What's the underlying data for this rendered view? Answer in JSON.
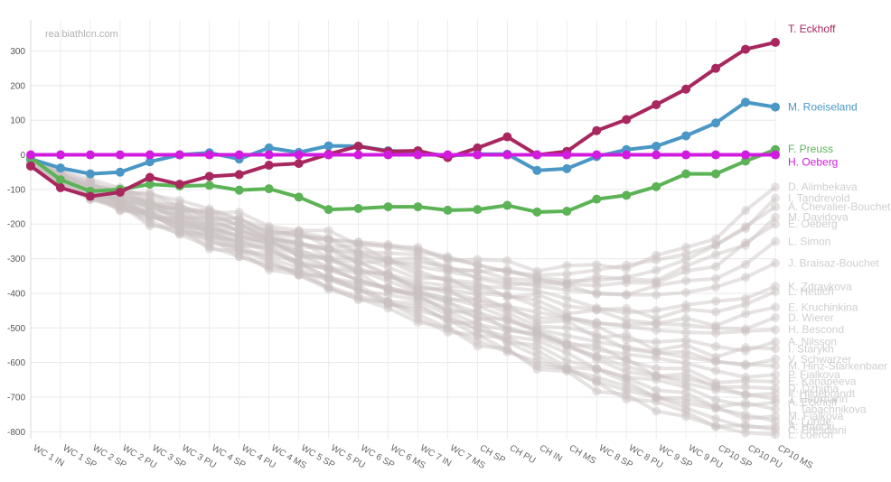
{
  "watermark": "realbiathlon.com",
  "chart_data": {
    "type": "line",
    "ylim": [
      -820,
      390
    ],
    "y_ticks": [
      300,
      200,
      100,
      0,
      -100,
      -200,
      -300,
      -400,
      -500,
      -600,
      -700,
      -800
    ],
    "grid": true,
    "x": [
      "WC 1 IN",
      "WC 1 SP",
      "WC 2 SP",
      "WC 2 PU",
      "WC 3 SP",
      "WC 3 PU",
      "WC 4 SP",
      "WC 4 PU",
      "WC 4 MS",
      "WC 5 SP",
      "WC 5 PU",
      "WC 6 SP",
      "WC 6 MS",
      "WC 7 IN",
      "WC 7 MS",
      "CH SP",
      "CH PU",
      "CH IN",
      "CH MS",
      "WC 8 SP",
      "WC 8 PU",
      "WC 9 SP",
      "WC 9 PU",
      "CP10 SP",
      "CP10 PU",
      "CP10 MS"
    ],
    "series": [
      {
        "name": "T. Eckhoff",
        "color": "#a8275f",
        "values": [
          -32,
          -95,
          -120,
          -108,
          -65,
          -85,
          -62,
          -57,
          -30,
          -25,
          2,
          25,
          10,
          12,
          -8,
          20,
          52,
          0,
          10,
          70,
          102,
          145,
          190,
          250,
          305,
          325
        ]
      },
      {
        "name": "M. Roeiseland",
        "color": "#4a97c6",
        "values": [
          -12,
          -38,
          -55,
          -50,
          -20,
          0,
          6,
          -12,
          20,
          7,
          26,
          25,
          12,
          8,
          -3,
          2,
          2,
          -45,
          -40,
          -5,
          15,
          25,
          55,
          92,
          152,
          138
        ]
      },
      {
        "name": "F. Preuss",
        "color": "#5cb356",
        "values": [
          -8,
          -72,
          -105,
          -100,
          -85,
          -90,
          -88,
          -102,
          -98,
          -122,
          -158,
          -155,
          -150,
          -150,
          -160,
          -158,
          -146,
          -165,
          -163,
          -128,
          -117,
          -92,
          -55,
          -55,
          -18,
          15
        ]
      },
      {
        "name": "H. Oeberg",
        "color": "#d11ce0",
        "values": [
          0,
          0,
          0,
          0,
          0,
          0,
          0,
          0,
          0,
          0,
          0,
          0,
          0,
          0,
          0,
          0,
          0,
          0,
          0,
          0,
          0,
          0,
          0,
          0,
          0,
          0
        ]
      }
    ],
    "background_series": [
      {
        "name": "D. Alimbekava",
        "end": -93
      },
      {
        "name": "I. Tandrevold",
        "end": -125
      },
      {
        "name": "A. Chevalier-Bouchet",
        "end": -150
      },
      {
        "name": "M. Davidova",
        "end": -180
      },
      {
        "name": "E. Oeberg",
        "end": -200
      },
      {
        "name": "L. Simon",
        "end": -250
      },
      {
        "name": "J. Braisaz-Bouchet",
        "end": -313
      },
      {
        "name": "K. Zdravkova",
        "end": -380
      },
      {
        "name": "L. Hettich",
        "end": -395
      },
      {
        "name": "E. Kruchinkina",
        "end": -440
      },
      {
        "name": "D. Wierer",
        "end": -470
      },
      {
        "name": "H. Bescond",
        "end": -505
      },
      {
        "name": "A. Nilsson",
        "end": -540
      },
      {
        "name": "I. Starykh",
        "end": -560
      },
      {
        "name": "V. Schwarzer",
        "end": -590
      },
      {
        "name": "M. Hinz-Starkenbaer",
        "end": -610
      },
      {
        "name": "P. Fialkova",
        "end": -635
      },
      {
        "name": "E. Kanapeeva",
        "end": -655
      },
      {
        "name": "D. Dzhima",
        "end": -675
      },
      {
        "name": "F. Hildebrandt",
        "end": -690
      },
      {
        "name": "J. Herrmann",
        "end": -705
      },
      {
        "name": "A. Eckhoff",
        "end": -715
      },
      {
        "name": "L. Tabachnikova",
        "end": -735
      },
      {
        "name": "M. Fialkova",
        "end": -755
      },
      {
        "name": "K. Lunde",
        "end": -770
      },
      {
        "name": "A. Haecki",
        "end": -785
      },
      {
        "name": "C. Bresciani",
        "end": -795
      },
      {
        "name": "L. Loerch",
        "end": -808
      }
    ]
  }
}
